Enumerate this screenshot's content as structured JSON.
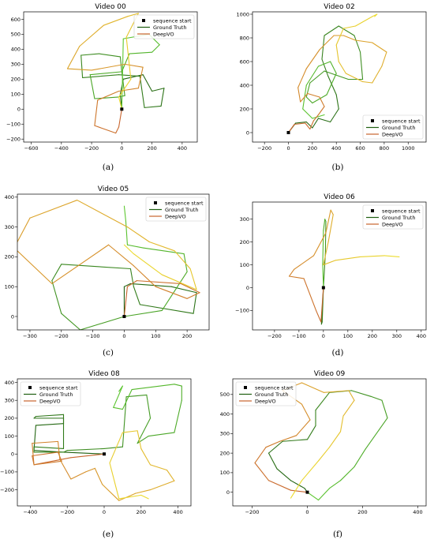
{
  "figure": {
    "legend_labels": [
      "sequence start",
      "Ground Truth",
      "DeepVO"
    ],
    "colors": {
      "gt": "#1f5f10",
      "deepvo": "#c8642d",
      "start": "#000000"
    },
    "line_palette_gt_to_green": [
      "#1f5f10",
      "#3f8f22",
      "#5cc72f"
    ],
    "line_palette_dv_to_yellow": [
      "#c8642d",
      "#d99a2a",
      "#ecdc2e"
    ]
  },
  "chart_data": [
    {
      "type": "line",
      "title": "Video 00",
      "caption": "(a)",
      "xlim": [
        -650,
        500
      ],
      "ylim": [
        -220,
        650
      ],
      "xticks": [
        -600,
        -400,
        -200,
        0,
        200,
        400
      ],
      "yticks": [
        -200,
        -100,
        0,
        100,
        200,
        300,
        400,
        500,
        600
      ],
      "legend_position": "upper-right",
      "start": [
        0,
        0
      ],
      "series": [
        {
          "name": "Ground Truth",
          "x": [
            0,
            -10,
            10,
            140,
            200,
            280,
            260,
            150,
            120,
            -20,
            -260,
            -270,
            -150,
            -10,
            0,
            20,
            -30,
            -180,
            -210,
            0,
            50,
            200,
            250,
            180,
            10,
            0
          ],
          "y": [
            0,
            100,
            200,
            230,
            120,
            140,
            20,
            10,
            220,
            230,
            210,
            360,
            370,
            350,
            250,
            90,
            80,
            70,
            230,
            250,
            370,
            380,
            430,
            500,
            470,
            0
          ]
        },
        {
          "name": "DeepVO",
          "x": [
            0,
            -20,
            -40,
            -180,
            -160,
            -20,
            110,
            140,
            20,
            -200,
            -360,
            -280,
            -120,
            40,
            110,
            30,
            60,
            -20,
            0
          ],
          "y": [
            0,
            -120,
            -160,
            -110,
            60,
            120,
            140,
            280,
            300,
            260,
            270,
            420,
            560,
            620,
            640,
            480,
            200,
            80,
            0
          ]
        }
      ]
    },
    {
      "type": "line",
      "title": "Video 02",
      "caption": "(b)",
      "xlim": [
        -300,
        1150
      ],
      "ylim": [
        -80,
        1020
      ],
      "xticks": [
        -200,
        0,
        200,
        400,
        600,
        800,
        1000
      ],
      "yticks": [
        0,
        200,
        400,
        600,
        800,
        1000
      ],
      "legend_position": "lower-right",
      "start": [
        0,
        0
      ],
      "series": [
        {
          "name": "Ground Truth",
          "x": [
            0,
            60,
            150,
            200,
            250,
            350,
            420,
            400,
            330,
            280,
            300,
            420,
            550,
            600,
            620,
            500,
            300,
            180,
            150,
            200,
            320,
            400,
            350,
            250,
            150,
            120,
            200,
            300
          ],
          "y": [
            0,
            80,
            90,
            40,
            120,
            90,
            200,
            320,
            480,
            620,
            820,
            900,
            820,
            680,
            450,
            450,
            520,
            420,
            300,
            250,
            320,
            500,
            600,
            560,
            400,
            200,
            120,
            150
          ]
        },
        {
          "name": "DeepVO",
          "x": [
            0,
            50,
            140,
            180,
            210,
            250,
            300,
            260,
            160,
            100,
            80,
            150,
            260,
            380,
            460,
            560,
            700,
            820,
            780,
            700,
            620,
            480,
            420,
            400,
            460,
            560,
            700,
            740,
            720
          ],
          "y": [
            0,
            70,
            80,
            30,
            100,
            150,
            220,
            300,
            330,
            260,
            380,
            540,
            700,
            820,
            820,
            780,
            760,
            680,
            560,
            420,
            430,
            500,
            600,
            740,
            880,
            900,
            980,
            1000,
            980
          ]
        }
      ]
    },
    {
      "type": "line",
      "title": "Video 05",
      "caption": "(c)",
      "xlim": [
        -340,
        270
      ],
      "ylim": [
        -45,
        410
      ],
      "xticks": [
        -300,
        -200,
        -100,
        0,
        100,
        200
      ],
      "yticks": [
        0,
        100,
        200,
        300,
        400
      ],
      "legend_position": "upper-right",
      "start": [
        0,
        0
      ],
      "series": [
        {
          "name": "Ground Truth",
          "x": [
            0,
            0,
            20,
            150,
            230,
            220,
            50,
            30,
            20,
            -200,
            -230,
            -200,
            -140,
            0,
            120,
            200,
            190,
            60,
            10,
            5,
            0
          ],
          "y": [
            0,
            100,
            110,
            100,
            80,
            10,
            40,
            100,
            160,
            175,
            120,
            10,
            -45,
            0,
            20,
            150,
            210,
            230,
            240,
            320,
            370
          ]
        },
        {
          "name": "DeepVO",
          "x": [
            0,
            10,
            40,
            180,
            240,
            200,
            100,
            30,
            -50,
            -230,
            -350,
            -300,
            -150,
            10,
            80,
            160,
            210,
            230,
            120,
            30,
            0
          ],
          "y": [
            0,
            100,
            120,
            110,
            80,
            60,
            100,
            170,
            240,
            110,
            230,
            330,
            390,
            300,
            250,
            220,
            160,
            90,
            140,
            210,
            240
          ]
        }
      ]
    },
    {
      "type": "line",
      "title": "Video 06",
      "caption": "(d)",
      "xlim": [
        -290,
        420
      ],
      "ylim": [
        -185,
        375
      ],
      "xticks": [
        -200,
        -100,
        0,
        100,
        200,
        300,
        400
      ],
      "yticks": [
        -100,
        0,
        100,
        200,
        300
      ],
      "legend_position": "upper-right",
      "start": [
        0,
        0
      ],
      "series": [
        {
          "name": "Ground Truth",
          "x": [
            0,
            -5,
            -8,
            -5,
            0,
            8,
            10,
            6,
            0,
            -3,
            0
          ],
          "y": [
            0,
            -100,
            -160,
            -150,
            0,
            150,
            290,
            300,
            250,
            100,
            0
          ]
        },
        {
          "name": "DeepVO",
          "x": [
            0,
            -10,
            -30,
            -80,
            -140,
            -120,
            -40,
            10,
            30,
            40,
            20,
            0,
            50,
            150,
            250,
            310
          ],
          "y": [
            0,
            -150,
            -100,
            40,
            50,
            80,
            140,
            240,
            340,
            320,
            200,
            100,
            120,
            135,
            140,
            135
          ]
        }
      ]
    },
    {
      "type": "line",
      "title": "Video 08",
      "caption": "(e)",
      "xlim": [
        -470,
        470
      ],
      "ylim": [
        -290,
        420
      ],
      "xticks": [
        -400,
        -200,
        0,
        200,
        400
      ],
      "yticks": [
        -200,
        -100,
        0,
        100,
        200,
        300,
        400
      ],
      "legend_position": "upper-left",
      "start": [
        0,
        0
      ],
      "series": [
        {
          "name": "Ground Truth",
          "x": [
            0,
            -220,
            -380,
            -370,
            -220,
            -220,
            -380,
            -370,
            -220,
            -220,
            -380,
            -380,
            -220,
            -200,
            0,
            100,
            120,
            230,
            250,
            180,
            240,
            380,
            420,
            420,
            380,
            150,
            100,
            50,
            100,
            80
          ],
          "y": [
            0,
            10,
            20,
            160,
            170,
            200,
            200,
            210,
            220,
            30,
            40,
            10,
            10,
            20,
            30,
            40,
            320,
            330,
            200,
            60,
            100,
            120,
            300,
            380,
            390,
            360,
            250,
            260,
            380,
            350
          ]
        },
        {
          "name": "DeepVO",
          "x": [
            0,
            -180,
            -380,
            -390,
            -250,
            -230,
            -380,
            -390,
            -250,
            -240,
            -180,
            -100,
            -50,
            -10,
            80,
            170,
            250,
            380,
            340,
            250,
            200,
            180,
            100,
            30,
            80,
            200,
            240
          ],
          "y": [
            0,
            -20,
            -60,
            -10,
            10,
            -40,
            -60,
            60,
            70,
            -30,
            -140,
            -100,
            -80,
            -170,
            -260,
            -220,
            -200,
            -150,
            -90,
            -60,
            30,
            130,
            120,
            -50,
            -250,
            -230,
            -250
          ]
        }
      ]
    },
    {
      "type": "line",
      "title": "Video 09",
      "caption": "(f)",
      "xlim": [
        -270,
        430
      ],
      "ylim": [
        -70,
        580
      ],
      "xticks": [
        -200,
        0,
        200,
        400
      ],
      "yticks": [
        0,
        100,
        200,
        300,
        400,
        500
      ],
      "legend_position": "upper-left",
      "start": [
        0,
        0
      ],
      "series": [
        {
          "name": "Ground Truth",
          "x": [
            0,
            -10,
            -60,
            -110,
            -140,
            -90,
            0,
            30,
            30,
            80,
            160,
            230,
            270,
            290,
            260,
            210,
            170,
            120,
            80,
            40,
            0
          ],
          "y": [
            0,
            20,
            60,
            120,
            200,
            260,
            270,
            340,
            420,
            510,
            520,
            490,
            470,
            380,
            320,
            220,
            130,
            60,
            20,
            -40,
            0
          ]
        },
        {
          "name": "DeepVO",
          "x": [
            0,
            -60,
            -140,
            -190,
            -150,
            -100,
            -40,
            10,
            -20,
            -90,
            -20,
            60,
            150,
            170,
            130,
            120,
            80,
            40,
            -20,
            -60
          ],
          "y": [
            0,
            10,
            60,
            150,
            230,
            260,
            290,
            370,
            450,
            520,
            560,
            510,
            520,
            470,
            390,
            310,
            230,
            160,
            60,
            -30
          ]
        }
      ]
    }
  ]
}
